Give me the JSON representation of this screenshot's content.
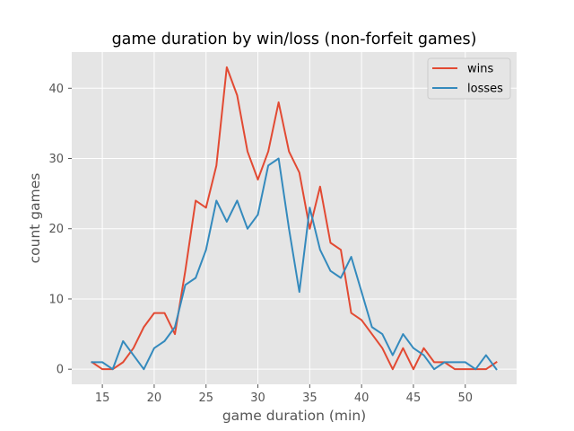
{
  "chart_data": {
    "type": "line",
    "title": "game duration by win/loss (non-forfeit games)",
    "xlabel": "game duration (min)",
    "ylabel": "count games",
    "xlim": [
      12.05,
      54.95
    ],
    "ylim": [
      -2.15,
      45.15
    ],
    "xticks": [
      15,
      20,
      25,
      30,
      35,
      40,
      45,
      50
    ],
    "yticks": [
      0,
      10,
      20,
      30,
      40
    ],
    "grid": true,
    "legend_position": "top-right",
    "x": [
      14,
      15,
      16,
      17,
      18,
      19,
      20,
      21,
      22,
      23,
      24,
      25,
      26,
      27,
      28,
      29,
      30,
      31,
      32,
      33,
      34,
      35,
      36,
      37,
      38,
      39,
      40,
      41,
      42,
      43,
      44,
      45,
      46,
      47,
      48,
      49,
      50,
      51,
      52,
      53
    ],
    "series": [
      {
        "name": "wins",
        "color": "#e24a33",
        "values": [
          1,
          0,
          0,
          1,
          3,
          6,
          8,
          8,
          5,
          14,
          24,
          23,
          29,
          43,
          39,
          31,
          27,
          31,
          38,
          31,
          28,
          20,
          26,
          18,
          17,
          8,
          7,
          5,
          3,
          0,
          3,
          0,
          3,
          1,
          1,
          0,
          0,
          0,
          0,
          1
        ]
      },
      {
        "name": "losses",
        "color": "#348abd",
        "values": [
          1,
          1,
          0,
          4,
          2,
          0,
          3,
          4,
          6,
          12,
          13,
          17,
          24,
          21,
          24,
          20,
          22,
          29,
          30,
          20,
          11,
          23,
          17,
          14,
          13,
          16,
          11,
          6,
          5,
          2,
          5,
          3,
          2,
          0,
          1,
          1,
          1,
          0,
          2,
          0
        ]
      }
    ]
  },
  "style": {
    "plot_background": "#e5e5e5",
    "grid_color": "#ffffff",
    "text_color": "#555555",
    "legend_background": "#e5e5e5",
    "legend_border": "#cccccc"
  }
}
